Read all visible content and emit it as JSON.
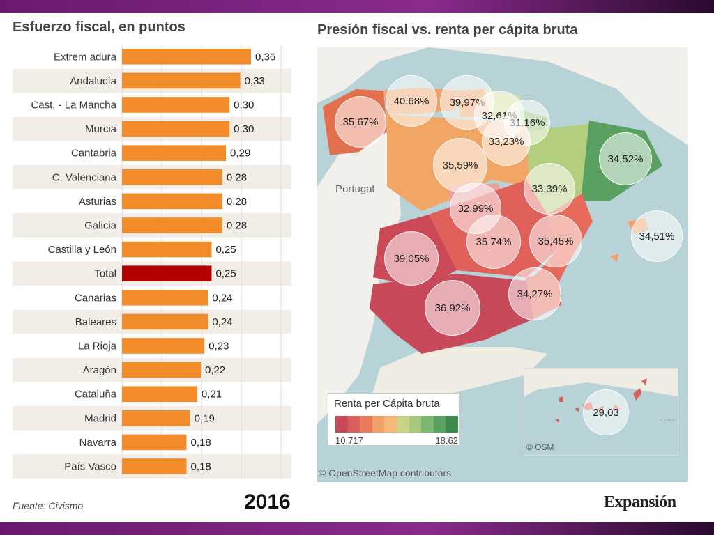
{
  "left_title": "Esfuerzo fiscal, en puntos",
  "right_title": "Presión fiscal vs. renta per cápita bruta",
  "footer": {
    "source": "Fuente: Civismo",
    "year": "2016",
    "brand": "Expansión"
  },
  "colors": {
    "bar": "#f28c2a",
    "bar_total": "#b30000",
    "row_alt": "#f3ede8"
  },
  "chart_data": {
    "type": "bar",
    "orientation": "horizontal",
    "title": "Esfuerzo fiscal, en puntos",
    "categories": [
      "Extrem adura",
      "Andalucía",
      "Cast. - La Mancha",
      "Murcia",
      "Cantabria",
      "C. Valenciana",
      "Asturias",
      "Galicia",
      "Castilla y León",
      "Total",
      "Canarias",
      "Baleares",
      "La Rioja",
      "Aragón",
      "Cataluña",
      "Madrid",
      "Navarra",
      "País Vasco"
    ],
    "values": [
      0.36,
      0.33,
      0.3,
      0.3,
      0.29,
      0.28,
      0.28,
      0.28,
      0.25,
      0.25,
      0.24,
      0.24,
      0.23,
      0.22,
      0.21,
      0.19,
      0.18,
      0.18
    ],
    "value_labels": [
      "0,36",
      "0,33",
      "0,30",
      "0,30",
      "0,29",
      "0,28",
      "0,28",
      "0,28",
      "0,25",
      "0,25",
      "0,24",
      "0,24",
      "0,23",
      "0,22",
      "0,21",
      "0,19",
      "0,18",
      "0,18"
    ],
    "highlight": "Total",
    "xlim": [
      0,
      0.36
    ]
  },
  "map": {
    "legend_title": "Renta per Cápita bruta",
    "legend_min": "10.717",
    "legend_max": "18.62",
    "legend_colors": [
      "#c84a5a",
      "#d9605a",
      "#e87a5a",
      "#f0a068",
      "#f6b878",
      "#c9d487",
      "#a6c97e",
      "#7db872",
      "#5aa060",
      "#3f8a4e"
    ],
    "country_label": "Portugal",
    "credit": "© OpenStreetMap contributors",
    "inset_credit": "© OSM",
    "bubbles": [
      "35,67%",
      "40,68%",
      "39,97%",
      "32,61%",
      "31,16%",
      "33,23%",
      "35,59%",
      "34,52%",
      "33,39%",
      "32,99%",
      "35,74%",
      "35,45%",
      "34,51%",
      "39,05%",
      "34,27%",
      "36,92%",
      "29,03"
    ]
  }
}
